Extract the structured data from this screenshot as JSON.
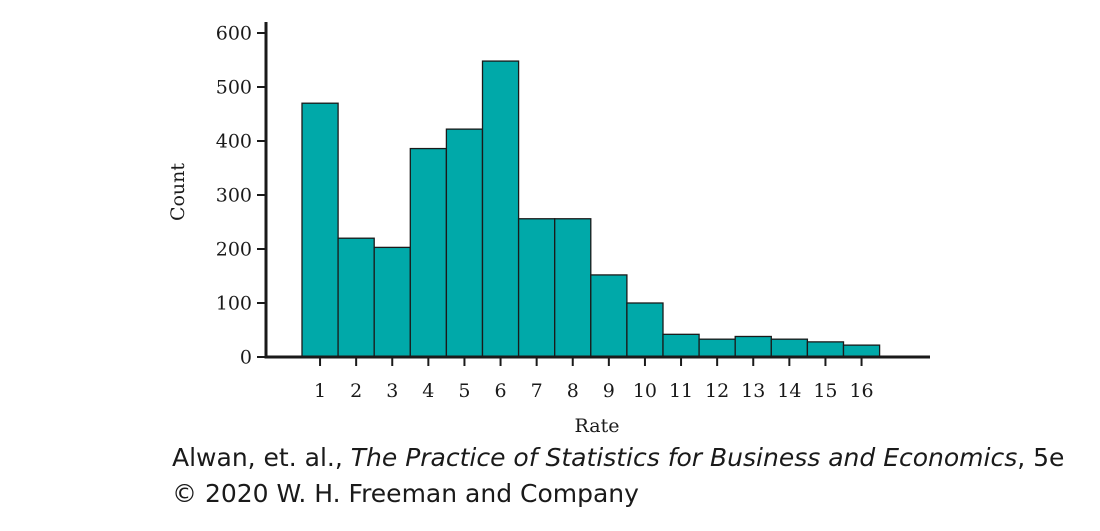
{
  "chart_data": {
    "type": "bar",
    "xlabel": "Rate",
    "ylabel": "Count",
    "categories": [
      "1",
      "2",
      "3",
      "4",
      "5",
      "6",
      "7",
      "8",
      "9",
      "10",
      "11",
      "12",
      "13",
      "14",
      "15",
      "16"
    ],
    "values": [
      470,
      220,
      203,
      386,
      422,
      548,
      256,
      256,
      152,
      100,
      42,
      33,
      38,
      33,
      28,
      22
    ],
    "ylim": [
      0,
      600
    ],
    "yticks": [
      0,
      100,
      200,
      300,
      400,
      500,
      600
    ],
    "grid": false,
    "colors": {
      "bar_fill": "#00A9A9",
      "bar_stroke": "#1a1a1a",
      "axis": "#1a1a1a"
    }
  },
  "caption": {
    "part1": "Alwan, et. al., ",
    "part2_italic": "The Practice of Statistics for Business and Economics",
    "part3": ", 5e © 2020 W. H. Freeman and Company"
  }
}
